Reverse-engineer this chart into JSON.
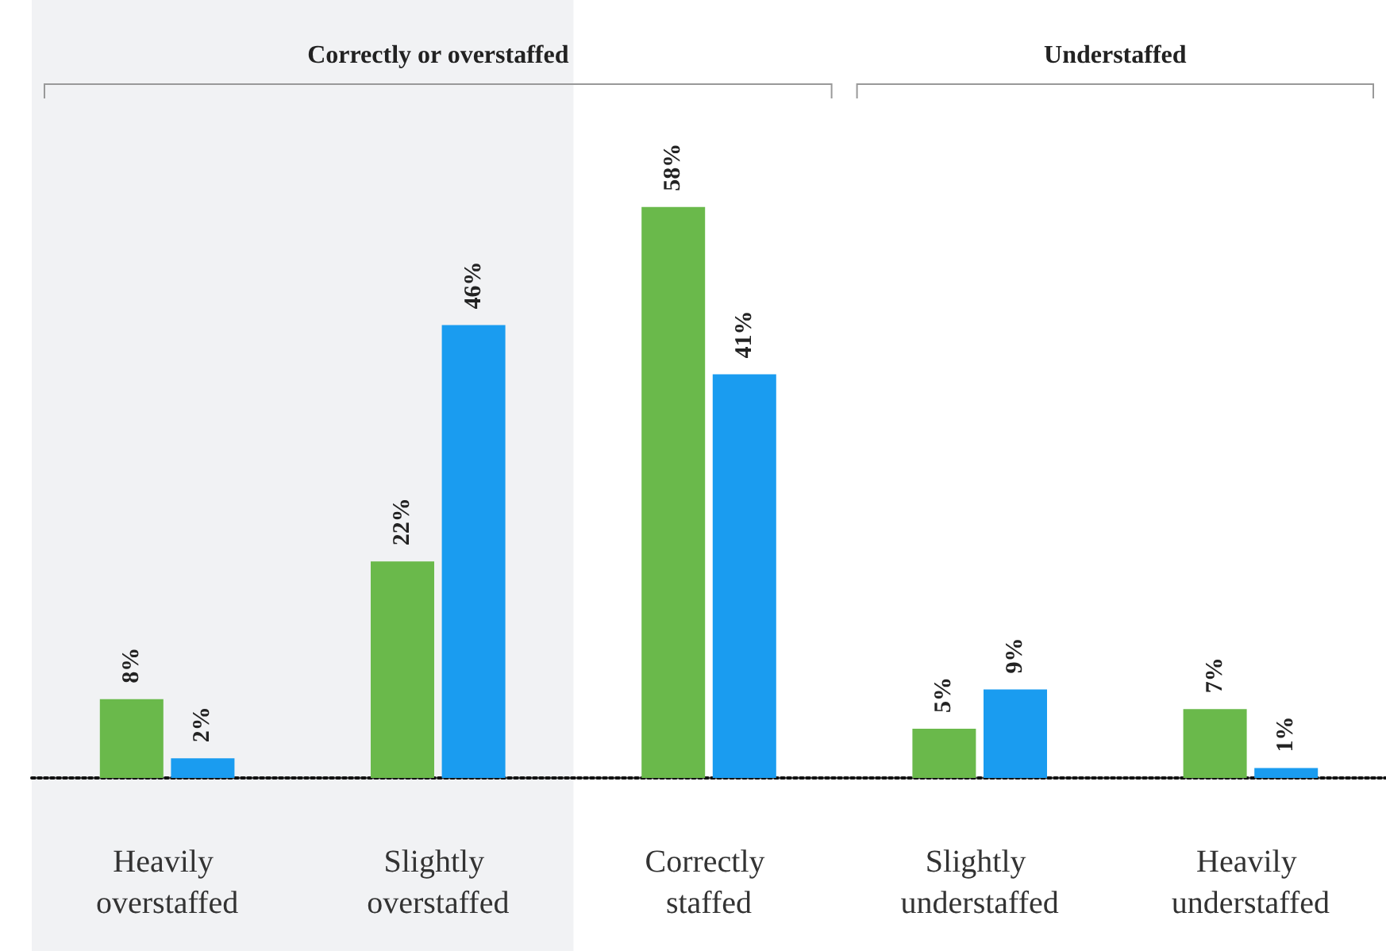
{
  "chart_data": {
    "type": "bar",
    "categories": [
      "Heavily overstaffed",
      "Slightly overstaffed",
      "Correctly staffed",
      "Slightly understaffed",
      "Heavily understaffed"
    ],
    "series": [
      {
        "color": "#6ab94b",
        "values": [
          8,
          22,
          58,
          5,
          7
        ],
        "value_labels": [
          "8%",
          "22%",
          "58%",
          "5%",
          "7%"
        ]
      },
      {
        "color": "#1a9cf0",
        "values": [
          2,
          46,
          41,
          9,
          1
        ],
        "value_labels": [
          "2%",
          "46%",
          "41%",
          "9%",
          "1%"
        ]
      }
    ],
    "annotations": [
      "Correctly or overstaffed",
      "Understaffed"
    ],
    "bands": [
      {
        "axis": "x",
        "from": "Heavily overstaffed",
        "to": "Slightly overstaffed",
        "color": "#f1f2f4"
      }
    ],
    "grid": false
  }
}
